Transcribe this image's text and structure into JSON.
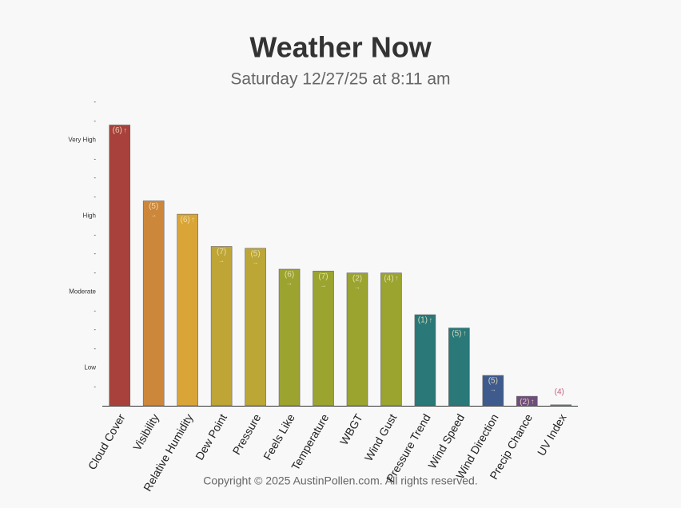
{
  "chart_data": {
    "type": "bar",
    "title": "Weather Now",
    "subtitle": "Saturday 12/27/25 at 8:11 am",
    "categories": [
      "Cloud Cover",
      "Visibility",
      "Relative Humidity",
      "Dew Point",
      "Pressure",
      "Feels Like",
      "Temperature",
      "WBGT",
      "Wind Gust",
      "Pressure Trend",
      "Wind Speed",
      "Wind Direction",
      "Precip Chance",
      "UV Index"
    ],
    "values": [
      14.8,
      10.8,
      10.1,
      8.4,
      8.3,
      7.2,
      7.1,
      7.0,
      7.0,
      4.8,
      4.1,
      1.6,
      0.5,
      0.05
    ],
    "bar_labels": [
      [
        "(6)",
        "↑"
      ],
      [
        "(5)",
        "→"
      ],
      [
        "(6)",
        "↑"
      ],
      [
        "(7)",
        "→"
      ],
      [
        "(5)",
        "→"
      ],
      [
        "(6)",
        "→"
      ],
      [
        "(7)",
        "→"
      ],
      [
        "(2)",
        "→"
      ],
      [
        "(4)",
        "↑"
      ],
      [
        "(1)",
        "↑"
      ],
      [
        "(5)",
        "↑"
      ],
      [
        "(5)",
        "→"
      ],
      [
        "(2)",
        "↑"
      ],
      [
        "(4)"
      ]
    ],
    "colors": [
      "#a8413b",
      "#cd873b",
      "#d9a536",
      "#bea535",
      "#bba636",
      "#9da32f",
      "#9ba42e",
      "#9aa42e",
      "#9aa42e",
      "#2a7878",
      "#2a7878",
      "#3f5b8d",
      "#6f4d7d",
      "#c2607a"
    ],
    "ylim": [
      0,
      16
    ],
    "yticks": [
      {
        "value": 1,
        "label": "-"
      },
      {
        "value": 2,
        "label": "Low"
      },
      {
        "value": 3,
        "label": "-"
      },
      {
        "value": 4,
        "label": "-"
      },
      {
        "value": 5,
        "label": "-"
      },
      {
        "value": 6,
        "label": "Moderate"
      },
      {
        "value": 7,
        "label": "-"
      },
      {
        "value": 8,
        "label": "-"
      },
      {
        "value": 9,
        "label": "-"
      },
      {
        "value": 10,
        "label": "High"
      },
      {
        "value": 11,
        "label": "-"
      },
      {
        "value": 12,
        "label": "-"
      },
      {
        "value": 13,
        "label": "-"
      },
      {
        "value": 14,
        "label": "Very High"
      },
      {
        "value": 15,
        "label": "-"
      },
      {
        "value": 16,
        "label": "-"
      }
    ],
    "footer": "Copyright © 2025 AustinPollen.com.  All rights reserved."
  }
}
